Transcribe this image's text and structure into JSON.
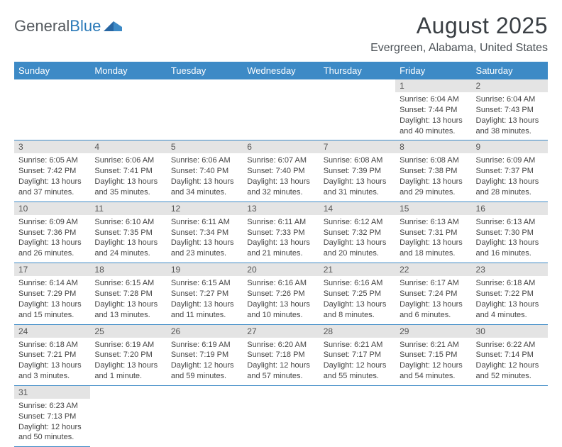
{
  "logo": {
    "text1": "General",
    "text2": "Blue",
    "color1": "#555a5f",
    "color2": "#2b7ab8",
    "mark_color": "#2766a3"
  },
  "title": {
    "month": "August 2025",
    "location": "Evergreen, Alabama, United States"
  },
  "header_bg": "#3d8ac6",
  "daynum_bg": "#e4e4e4",
  "divider_color": "#3d8ac6",
  "weekdays": [
    "Sunday",
    "Monday",
    "Tuesday",
    "Wednesday",
    "Thursday",
    "Friday",
    "Saturday"
  ],
  "weeks": [
    [
      null,
      null,
      null,
      null,
      null,
      {
        "n": "1",
        "sunrise": "Sunrise: 6:04 AM",
        "sunset": "Sunset: 7:44 PM",
        "daylight": "Daylight: 13 hours and 40 minutes."
      },
      {
        "n": "2",
        "sunrise": "Sunrise: 6:04 AM",
        "sunset": "Sunset: 7:43 PM",
        "daylight": "Daylight: 13 hours and 38 minutes."
      }
    ],
    [
      {
        "n": "3",
        "sunrise": "Sunrise: 6:05 AM",
        "sunset": "Sunset: 7:42 PM",
        "daylight": "Daylight: 13 hours and 37 minutes."
      },
      {
        "n": "4",
        "sunrise": "Sunrise: 6:06 AM",
        "sunset": "Sunset: 7:41 PM",
        "daylight": "Daylight: 13 hours and 35 minutes."
      },
      {
        "n": "5",
        "sunrise": "Sunrise: 6:06 AM",
        "sunset": "Sunset: 7:40 PM",
        "daylight": "Daylight: 13 hours and 34 minutes."
      },
      {
        "n": "6",
        "sunrise": "Sunrise: 6:07 AM",
        "sunset": "Sunset: 7:40 PM",
        "daylight": "Daylight: 13 hours and 32 minutes."
      },
      {
        "n": "7",
        "sunrise": "Sunrise: 6:08 AM",
        "sunset": "Sunset: 7:39 PM",
        "daylight": "Daylight: 13 hours and 31 minutes."
      },
      {
        "n": "8",
        "sunrise": "Sunrise: 6:08 AM",
        "sunset": "Sunset: 7:38 PM",
        "daylight": "Daylight: 13 hours and 29 minutes."
      },
      {
        "n": "9",
        "sunrise": "Sunrise: 6:09 AM",
        "sunset": "Sunset: 7:37 PM",
        "daylight": "Daylight: 13 hours and 28 minutes."
      }
    ],
    [
      {
        "n": "10",
        "sunrise": "Sunrise: 6:09 AM",
        "sunset": "Sunset: 7:36 PM",
        "daylight": "Daylight: 13 hours and 26 minutes."
      },
      {
        "n": "11",
        "sunrise": "Sunrise: 6:10 AM",
        "sunset": "Sunset: 7:35 PM",
        "daylight": "Daylight: 13 hours and 24 minutes."
      },
      {
        "n": "12",
        "sunrise": "Sunrise: 6:11 AM",
        "sunset": "Sunset: 7:34 PM",
        "daylight": "Daylight: 13 hours and 23 minutes."
      },
      {
        "n": "13",
        "sunrise": "Sunrise: 6:11 AM",
        "sunset": "Sunset: 7:33 PM",
        "daylight": "Daylight: 13 hours and 21 minutes."
      },
      {
        "n": "14",
        "sunrise": "Sunrise: 6:12 AM",
        "sunset": "Sunset: 7:32 PM",
        "daylight": "Daylight: 13 hours and 20 minutes."
      },
      {
        "n": "15",
        "sunrise": "Sunrise: 6:13 AM",
        "sunset": "Sunset: 7:31 PM",
        "daylight": "Daylight: 13 hours and 18 minutes."
      },
      {
        "n": "16",
        "sunrise": "Sunrise: 6:13 AM",
        "sunset": "Sunset: 7:30 PM",
        "daylight": "Daylight: 13 hours and 16 minutes."
      }
    ],
    [
      {
        "n": "17",
        "sunrise": "Sunrise: 6:14 AM",
        "sunset": "Sunset: 7:29 PM",
        "daylight": "Daylight: 13 hours and 15 minutes."
      },
      {
        "n": "18",
        "sunrise": "Sunrise: 6:15 AM",
        "sunset": "Sunset: 7:28 PM",
        "daylight": "Daylight: 13 hours and 13 minutes."
      },
      {
        "n": "19",
        "sunrise": "Sunrise: 6:15 AM",
        "sunset": "Sunset: 7:27 PM",
        "daylight": "Daylight: 13 hours and 11 minutes."
      },
      {
        "n": "20",
        "sunrise": "Sunrise: 6:16 AM",
        "sunset": "Sunset: 7:26 PM",
        "daylight": "Daylight: 13 hours and 10 minutes."
      },
      {
        "n": "21",
        "sunrise": "Sunrise: 6:16 AM",
        "sunset": "Sunset: 7:25 PM",
        "daylight": "Daylight: 13 hours and 8 minutes."
      },
      {
        "n": "22",
        "sunrise": "Sunrise: 6:17 AM",
        "sunset": "Sunset: 7:24 PM",
        "daylight": "Daylight: 13 hours and 6 minutes."
      },
      {
        "n": "23",
        "sunrise": "Sunrise: 6:18 AM",
        "sunset": "Sunset: 7:22 PM",
        "daylight": "Daylight: 13 hours and 4 minutes."
      }
    ],
    [
      {
        "n": "24",
        "sunrise": "Sunrise: 6:18 AM",
        "sunset": "Sunset: 7:21 PM",
        "daylight": "Daylight: 13 hours and 3 minutes."
      },
      {
        "n": "25",
        "sunrise": "Sunrise: 6:19 AM",
        "sunset": "Sunset: 7:20 PM",
        "daylight": "Daylight: 13 hours and 1 minute."
      },
      {
        "n": "26",
        "sunrise": "Sunrise: 6:19 AM",
        "sunset": "Sunset: 7:19 PM",
        "daylight": "Daylight: 12 hours and 59 minutes."
      },
      {
        "n": "27",
        "sunrise": "Sunrise: 6:20 AM",
        "sunset": "Sunset: 7:18 PM",
        "daylight": "Daylight: 12 hours and 57 minutes."
      },
      {
        "n": "28",
        "sunrise": "Sunrise: 6:21 AM",
        "sunset": "Sunset: 7:17 PM",
        "daylight": "Daylight: 12 hours and 55 minutes."
      },
      {
        "n": "29",
        "sunrise": "Sunrise: 6:21 AM",
        "sunset": "Sunset: 7:15 PM",
        "daylight": "Daylight: 12 hours and 54 minutes."
      },
      {
        "n": "30",
        "sunrise": "Sunrise: 6:22 AM",
        "sunset": "Sunset: 7:14 PM",
        "daylight": "Daylight: 12 hours and 52 minutes."
      }
    ],
    [
      {
        "n": "31",
        "sunrise": "Sunrise: 6:23 AM",
        "sunset": "Sunset: 7:13 PM",
        "daylight": "Daylight: 12 hours and 50 minutes."
      },
      null,
      null,
      null,
      null,
      null,
      null
    ]
  ]
}
